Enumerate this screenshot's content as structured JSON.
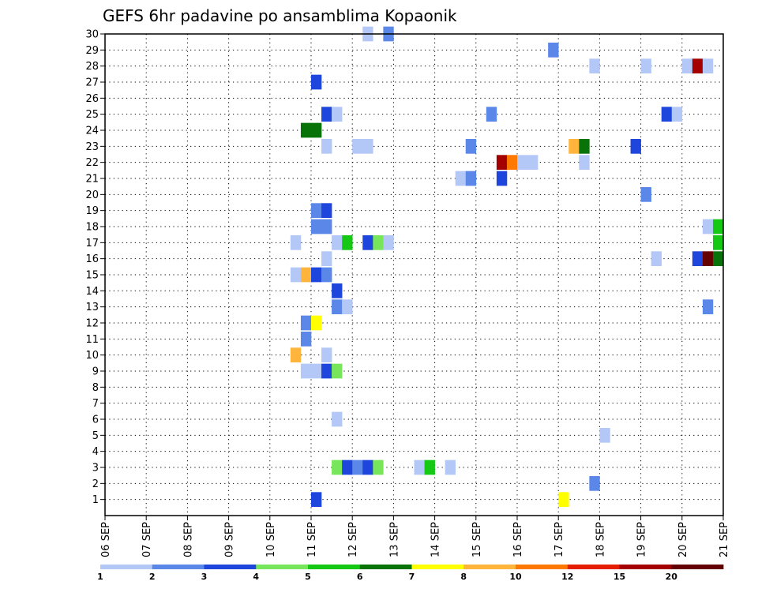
{
  "chart_data": {
    "type": "heatmap",
    "title": "GEFS 6hr padavine po ansamblima Kopaonik",
    "xlabel": "",
    "ylabel": "",
    "grid": true,
    "x_tick_labels": [
      "06 SEP",
      "07 SEP",
      "08 SEP",
      "09 SEP",
      "10 SEP",
      "11 SEP",
      "12 SEP",
      "13 SEP",
      "14 SEP",
      "15 SEP",
      "16 SEP",
      "17 SEP",
      "18 SEP",
      "19 SEP",
      "20 SEP",
      "21 SEP"
    ],
    "y_tick_labels": [
      "1",
      "2",
      "3",
      "4",
      "5",
      "6",
      "7",
      "8",
      "9",
      "10",
      "11",
      "12",
      "13",
      "14",
      "15",
      "16",
      "17",
      "18",
      "19",
      "20",
      "21",
      "22",
      "23",
      "24",
      "25",
      "26",
      "27",
      "28",
      "29",
      "30"
    ],
    "ylim": [
      0,
      30
    ],
    "legend": {
      "placement": "bottom",
      "thresholds": [
        1,
        2,
        3,
        4,
        5,
        6,
        7,
        8,
        10,
        12,
        15,
        20
      ],
      "labels": [
        "1",
        "2",
        "3",
        "4",
        "5",
        "6",
        "7",
        "8",
        "10",
        "12",
        "15",
        "20"
      ],
      "colors": [
        "#b4c8f8",
        "#5a87e8",
        "#1e46dc",
        "#78e65a",
        "#14c814",
        "#087308",
        "#ffff00",
        "#ffb43c",
        "#ff7800",
        "#e61e00",
        "#a50000",
        "#640000"
      ]
    },
    "cells": [
      {
        "member": 30,
        "step": 25,
        "level": 0
      },
      {
        "member": 30,
        "step": 27,
        "level": 1
      },
      {
        "member": 29,
        "step": 43,
        "level": 1
      },
      {
        "member": 28,
        "step": 47,
        "level": 0
      },
      {
        "member": 28,
        "step": 52,
        "level": 0
      },
      {
        "member": 28,
        "step": 56,
        "level": 0
      },
      {
        "member": 28,
        "step": 57,
        "level": 10
      },
      {
        "member": 28,
        "step": 58,
        "level": 0
      },
      {
        "member": 27,
        "step": 20,
        "level": 2
      },
      {
        "member": 25,
        "step": 21,
        "level": 2
      },
      {
        "member": 25,
        "step": 22,
        "level": 0
      },
      {
        "member": 25,
        "step": 37,
        "level": 1
      },
      {
        "member": 25,
        "step": 54,
        "level": 2
      },
      {
        "member": 25,
        "step": 55,
        "level": 0
      },
      {
        "member": 24,
        "step": 19,
        "level": 5
      },
      {
        "member": 24,
        "step": 20,
        "level": 5
      },
      {
        "member": 23,
        "step": 21,
        "level": 0
      },
      {
        "member": 23,
        "step": 24,
        "level": 0
      },
      {
        "member": 23,
        "step": 25,
        "level": 0
      },
      {
        "member": 23,
        "step": 35,
        "level": 1
      },
      {
        "member": 23,
        "step": 45,
        "level": 7
      },
      {
        "member": 23,
        "step": 46,
        "level": 5
      },
      {
        "member": 23,
        "step": 51,
        "level": 2
      },
      {
        "member": 22,
        "step": 38,
        "level": 10
      },
      {
        "member": 22,
        "step": 39,
        "level": 8
      },
      {
        "member": 22,
        "step": 40,
        "level": 0
      },
      {
        "member": 22,
        "step": 41,
        "level": 0
      },
      {
        "member": 22,
        "step": 46,
        "level": 0
      },
      {
        "member": 21,
        "step": 34,
        "level": 0
      },
      {
        "member": 21,
        "step": 35,
        "level": 1
      },
      {
        "member": 21,
        "step": 38,
        "level": 2
      },
      {
        "member": 20,
        "step": 52,
        "level": 1
      },
      {
        "member": 19,
        "step": 20,
        "level": 1
      },
      {
        "member": 19,
        "step": 21,
        "level": 2
      },
      {
        "member": 18,
        "step": 20,
        "level": 1
      },
      {
        "member": 18,
        "step": 21,
        "level": 1
      },
      {
        "member": 18,
        "step": 58,
        "level": 0
      },
      {
        "member": 18,
        "step": 59,
        "level": 4
      },
      {
        "member": 17,
        "step": 18,
        "level": 0
      },
      {
        "member": 17,
        "step": 22,
        "level": 0
      },
      {
        "member": 17,
        "step": 23,
        "level": 4
      },
      {
        "member": 17,
        "step": 25,
        "level": 2
      },
      {
        "member": 17,
        "step": 26,
        "level": 3
      },
      {
        "member": 17,
        "step": 27,
        "level": 0
      },
      {
        "member": 17,
        "step": 59,
        "level": 4
      },
      {
        "member": 16,
        "step": 21,
        "level": 0
      },
      {
        "member": 16,
        "step": 53,
        "level": 0
      },
      {
        "member": 16,
        "step": 57,
        "level": 2
      },
      {
        "member": 16,
        "step": 58,
        "level": 11
      },
      {
        "member": 16,
        "step": 59,
        "level": 5
      },
      {
        "member": 15,
        "step": 18,
        "level": 0
      },
      {
        "member": 15,
        "step": 19,
        "level": 7
      },
      {
        "member": 15,
        "step": 20,
        "level": 2
      },
      {
        "member": 15,
        "step": 21,
        "level": 1
      },
      {
        "member": 14,
        "step": 22,
        "level": 2
      },
      {
        "member": 13,
        "step": 22,
        "level": 1
      },
      {
        "member": 13,
        "step": 23,
        "level": 0
      },
      {
        "member": 13,
        "step": 58,
        "level": 1
      },
      {
        "member": 12,
        "step": 19,
        "level": 1
      },
      {
        "member": 12,
        "step": 20,
        "level": 6
      },
      {
        "member": 11,
        "step": 19,
        "level": 1
      },
      {
        "member": 10,
        "step": 18,
        "level": 7
      },
      {
        "member": 10,
        "step": 21,
        "level": 0
      },
      {
        "member": 9,
        "step": 19,
        "level": 0
      },
      {
        "member": 9,
        "step": 20,
        "level": 0
      },
      {
        "member": 9,
        "step": 21,
        "level": 2
      },
      {
        "member": 9,
        "step": 22,
        "level": 3
      },
      {
        "member": 6,
        "step": 22,
        "level": 0
      },
      {
        "member": 5,
        "step": 48,
        "level": 0
      },
      {
        "member": 3,
        "step": 22,
        "level": 3
      },
      {
        "member": 3,
        "step": 23,
        "level": 2
      },
      {
        "member": 3,
        "step": 24,
        "level": 1
      },
      {
        "member": 3,
        "step": 25,
        "level": 2
      },
      {
        "member": 3,
        "step": 26,
        "level": 3
      },
      {
        "member": 3,
        "step": 30,
        "level": 0
      },
      {
        "member": 3,
        "step": 31,
        "level": 4
      },
      {
        "member": 3,
        "step": 33,
        "level": 0
      },
      {
        "member": 2,
        "step": 47,
        "level": 1
      },
      {
        "member": 1,
        "step": 20,
        "level": 2
      },
      {
        "member": 1,
        "step": 44,
        "level": 6
      }
    ]
  }
}
